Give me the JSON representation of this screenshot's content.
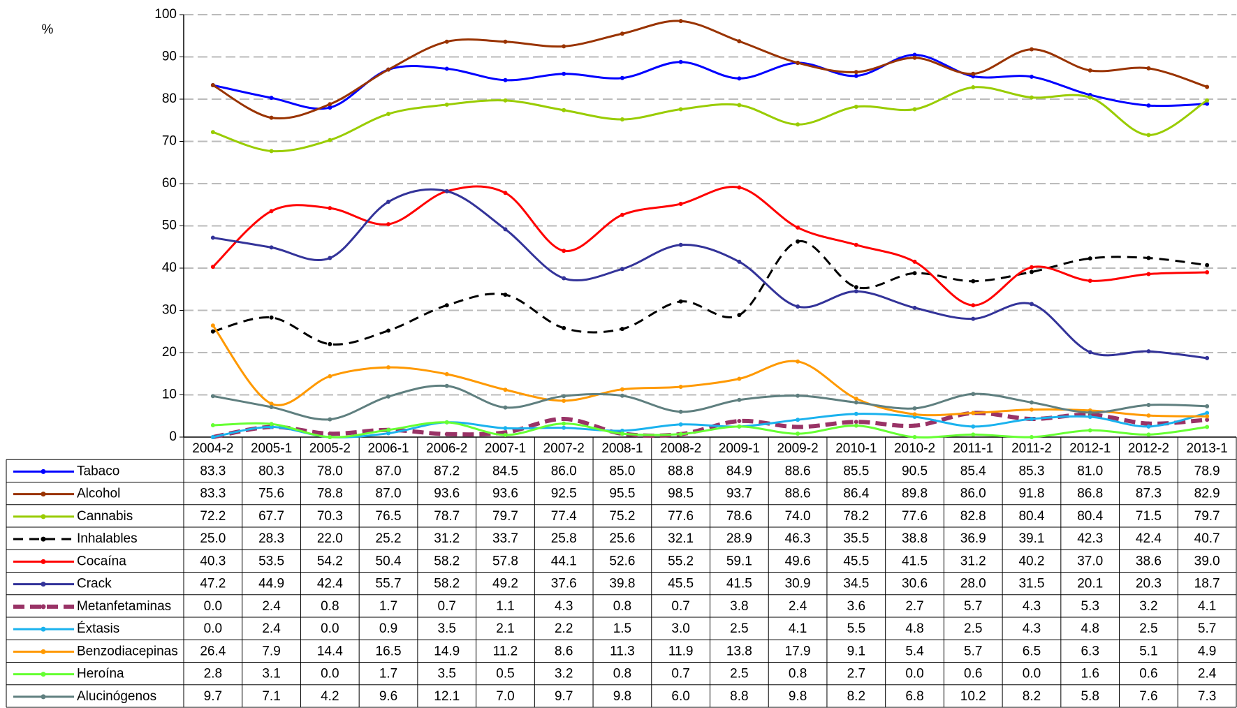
{
  "chart_data": {
    "type": "line",
    "y_label": "%",
    "categories": [
      "2004-2",
      "2005-1",
      "2005-2",
      "2006-1",
      "2006-2",
      "2007-1",
      "2007-2",
      "2008-1",
      "2008-2",
      "2009-1",
      "2009-2",
      "2010-1",
      "2010-2",
      "2011-1",
      "2011-2",
      "2012-1",
      "2012-2",
      "2013-1"
    ],
    "ylim": [
      0,
      100
    ],
    "yticks": [
      0,
      10,
      20,
      30,
      40,
      50,
      60,
      70,
      80,
      90,
      100
    ],
    "grid": true,
    "smooth": true,
    "series": [
      {
        "name": "Tabaco",
        "color": "#0000ff",
        "values": [
          83.3,
          80.3,
          78.0,
          87.0,
          87.2,
          84.5,
          86.0,
          85.0,
          88.8,
          84.9,
          88.6,
          85.5,
          90.5,
          85.4,
          85.3,
          81.0,
          78.5,
          78.9
        ],
        "value_labels": [
          "83.3",
          "80.3",
          "78.0",
          "87.0",
          "87.2",
          "84.5",
          "86.0",
          "85.0",
          "88.8",
          "84.9",
          "88.6",
          "85.5",
          "90.5",
          "85.4",
          "85.3",
          "81.0",
          "78.5",
          "78.9"
        ]
      },
      {
        "name": "Alcohol",
        "color": "#993300",
        "values": [
          83.3,
          75.6,
          78.8,
          87.0,
          93.6,
          93.6,
          92.5,
          95.5,
          98.5,
          93.7,
          88.6,
          86.4,
          89.8,
          86.0,
          91.8,
          86.8,
          87.3,
          82.9
        ],
        "value_labels": [
          "83.3",
          "75.6",
          "78.8",
          "87.0",
          "93.6",
          "93.6",
          "92.5",
          "95.5",
          "98.5",
          "93.7",
          "88.6",
          "86.4",
          "89.8",
          "86.0",
          "91.8",
          "86.8",
          "87.3",
          "82.9"
        ]
      },
      {
        "name": "Cannabis",
        "color": "#99cc00",
        "values": [
          72.2,
          67.7,
          70.3,
          76.5,
          78.7,
          79.7,
          77.4,
          75.2,
          77.6,
          78.6,
          74.0,
          78.2,
          77.6,
          82.8,
          80.4,
          80.4,
          71.5,
          79.7
        ],
        "value_labels": [
          "72.2",
          "67.7",
          "70.3",
          "76.5",
          "78.7",
          "79.7",
          "77.4",
          "75.2",
          "77.6",
          "78.6",
          "74.0",
          "78.2",
          "77.6",
          "82.8",
          "80.4",
          "80.4",
          "71.5",
          "79.7"
        ]
      },
      {
        "name": "Inhalables",
        "color": "#000000",
        "dashed": true,
        "values": [
          25.0,
          28.3,
          22.0,
          25.2,
          31.2,
          33.7,
          25.8,
          25.6,
          32.1,
          28.9,
          46.3,
          35.5,
          38.8,
          36.9,
          39.1,
          42.3,
          42.4,
          40.7
        ],
        "value_labels": [
          "25.0",
          "28.3",
          "22.0",
          "25.2",
          "31.2",
          "33.7",
          "25.8",
          "25.6",
          "32.1",
          "28.9",
          "46.3",
          "35.5",
          "38.8",
          "36.9",
          "39.1",
          "42.3",
          "42.4",
          "40.7"
        ]
      },
      {
        "name": "Cocaína",
        "color": "#ff0000",
        "values": [
          40.3,
          53.5,
          54.2,
          50.4,
          58.2,
          57.8,
          44.1,
          52.6,
          55.2,
          59.1,
          49.6,
          45.5,
          41.5,
          31.2,
          40.2,
          37.0,
          38.6,
          39.0
        ],
        "value_labels": [
          "40.3",
          "53.5",
          "54.2",
          "50.4",
          "58.2",
          "57.8",
          "44.1",
          "52.6",
          "55.2",
          "59.1",
          "49.6",
          "45.5",
          "41.5",
          "31.2",
          "40.2",
          "37.0",
          "38.6",
          "39.0"
        ]
      },
      {
        "name": "Crack",
        "color": "#333399",
        "values": [
          47.2,
          44.9,
          42.4,
          55.7,
          58.2,
          49.2,
          37.6,
          39.8,
          45.5,
          41.5,
          30.9,
          34.5,
          30.6,
          28.0,
          31.5,
          20.1,
          20.3,
          18.7
        ],
        "value_labels": [
          "47.2",
          "44.9",
          "42.4",
          "55.7",
          "58.2",
          "49.2",
          "37.6",
          "39.8",
          "45.5",
          "41.5",
          "30.9",
          "34.5",
          "30.6",
          "28.0",
          "31.5",
          "20.1",
          "20.3",
          "18.7"
        ]
      },
      {
        "name": "Metanfetaminas",
        "color": "#993366",
        "dashed": true,
        "values": [
          0.0,
          2.4,
          0.8,
          1.7,
          0.7,
          1.1,
          4.3,
          0.8,
          0.7,
          3.8,
          2.4,
          3.6,
          2.7,
          5.7,
          4.3,
          5.3,
          3.2,
          4.1
        ],
        "value_labels": [
          "0.0",
          "2.4",
          "0.8",
          "1.7",
          "0.7",
          "1.1",
          "4.3",
          "0.8",
          "0.7",
          "3.8",
          "2.4",
          "3.6",
          "2.7",
          "5.7",
          "4.3",
          "5.3",
          "3.2",
          "4.1"
        ]
      },
      {
        "name": "Éxtasis",
        "color": "#1ab2ee",
        "values": [
          0.0,
          2.4,
          0.0,
          0.9,
          3.5,
          2.1,
          2.2,
          1.5,
          3.0,
          2.5,
          4.1,
          5.5,
          4.8,
          2.5,
          4.3,
          4.8,
          2.5,
          5.7
        ],
        "value_labels": [
          "0.0",
          "2.4",
          "0.0",
          "0.9",
          "3.5",
          "2.1",
          "2.2",
          "1.5",
          "3.0",
          "2.5",
          "4.1",
          "5.5",
          "4.8",
          "2.5",
          "4.3",
          "4.8",
          "2.5",
          "5.7"
        ]
      },
      {
        "name": "Benzodiacepinas",
        "color": "#ff9900",
        "values": [
          26.4,
          7.9,
          14.4,
          16.5,
          14.9,
          11.2,
          8.6,
          11.3,
          11.9,
          13.8,
          17.9,
          9.1,
          5.4,
          5.7,
          6.5,
          6.3,
          5.1,
          4.9
        ],
        "value_labels": [
          "26.4",
          "7.9",
          "14.4",
          "16.5",
          "14.9",
          "11.2",
          "8.6",
          "11.3",
          "11.9",
          "13.8",
          "17.9",
          "9.1",
          "5.4",
          "5.7",
          "6.5",
          "6.3",
          "5.1",
          "4.9"
        ]
      },
      {
        "name": "Heroína",
        "color": "#66ff33",
        "values": [
          2.8,
          3.1,
          0.0,
          1.7,
          3.5,
          0.5,
          3.2,
          0.8,
          0.7,
          2.5,
          0.8,
          2.7,
          0.0,
          0.6,
          0.0,
          1.6,
          0.6,
          2.4
        ],
        "value_labels": [
          "2.8",
          "3.1",
          "0.0",
          "1.7",
          "3.5",
          "0.5",
          "3.2",
          "0.8",
          "0.7",
          "2.5",
          "0.8",
          "2.7",
          "0.0",
          "0.6",
          "0.0",
          "1.6",
          "0.6",
          "2.4"
        ]
      },
      {
        "name": "Alucinógenos",
        "color": "#5f7f7f",
        "values": [
          9.7,
          7.1,
          4.2,
          9.6,
          12.1,
          7.0,
          9.7,
          9.8,
          6.0,
          8.8,
          9.8,
          8.2,
          6.8,
          10.2,
          8.2,
          5.8,
          7.6,
          7.3
        ],
        "value_labels": [
          "9.7",
          "7.1",
          "4.2",
          "9.6",
          "12.1",
          "7.0",
          "9.7",
          "9.8",
          "6.0",
          "8.8",
          "9.8",
          "8.2",
          "6.8",
          "10.2",
          "8.2",
          "5.8",
          "7.6",
          "7.3"
        ]
      }
    ]
  }
}
